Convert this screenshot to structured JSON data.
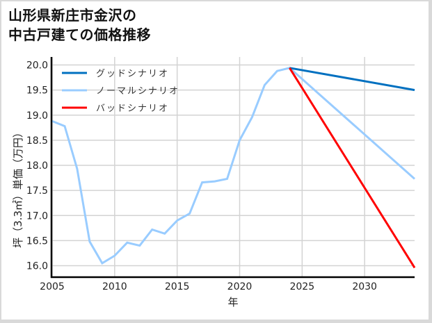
{
  "title_line1": "山形県新庄市金沢の",
  "title_line2": "中古戸建ての価格推移",
  "chart_data": {
    "type": "line",
    "title": "山形県新庄市金沢の中古戸建ての価格推移",
    "xlabel": "年",
    "ylabel": "坪（3.3㎡）単価（万円）",
    "xlim": [
      2005,
      2034
    ],
    "ylim": [
      15.8,
      20.15
    ],
    "xticks": [
      2005,
      2010,
      2015,
      2020,
      2025,
      2030
    ],
    "yticks": [
      "16.0",
      "16.5",
      "17.0",
      "17.5",
      "18.0",
      "18.5",
      "19.0",
      "19.5",
      "20.0"
    ],
    "grid": true,
    "legend_position": "upper left",
    "series": [
      {
        "name": "グッドシナリオ",
        "color": "#0070c0",
        "x": [
          2024,
          2034
        ],
        "y": [
          19.94,
          19.5
        ]
      },
      {
        "name": "ノーマルシナリオ",
        "color": "#99ccff",
        "x": [
          2005,
          2006,
          2007,
          2008,
          2009,
          2010,
          2011,
          2012,
          2013,
          2014,
          2015,
          2016,
          2017,
          2018,
          2019,
          2020,
          2021,
          2022,
          2023,
          2024,
          2034
        ],
        "y": [
          18.88,
          18.78,
          17.93,
          16.48,
          16.05,
          16.2,
          16.46,
          16.4,
          16.72,
          16.64,
          16.9,
          17.04,
          17.66,
          17.68,
          17.73,
          18.5,
          18.96,
          19.6,
          19.88,
          19.94,
          17.73
        ]
      },
      {
        "name": "バッドシナリオ",
        "color": "#ff0000",
        "x": [
          2024,
          2034
        ],
        "y": [
          19.94,
          15.96
        ]
      }
    ]
  }
}
